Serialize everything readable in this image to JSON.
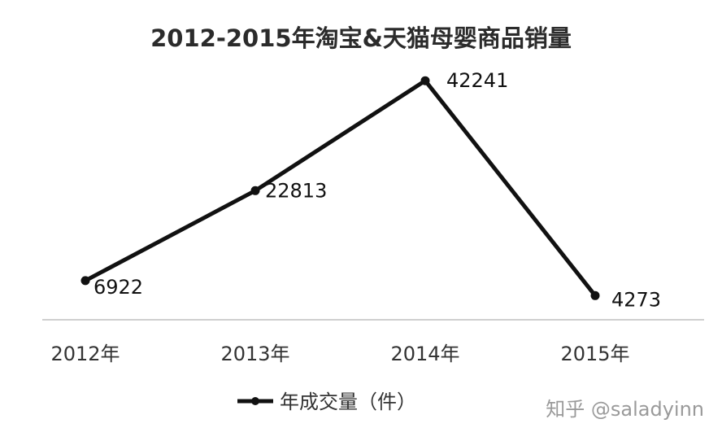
{
  "chart_data": {
    "type": "line",
    "title": "2012-2015年淘宝&天猫母婴商品销量",
    "categories": [
      "2012年",
      "2013年",
      "2014年",
      "2015年"
    ],
    "series": [
      {
        "name": "年成交量（件）",
        "values": [
          6922,
          22813,
          42241,
          4273
        ],
        "color": "#111111"
      }
    ],
    "xlabel": "",
    "ylabel": "",
    "ylim": [
      0,
      45000
    ],
    "grid": false,
    "legend_position": "bottom"
  },
  "watermark": "知乎 @saladyinn",
  "colors": {
    "line": "#111111",
    "axis": "#bfbfbf",
    "text": "#333333"
  }
}
